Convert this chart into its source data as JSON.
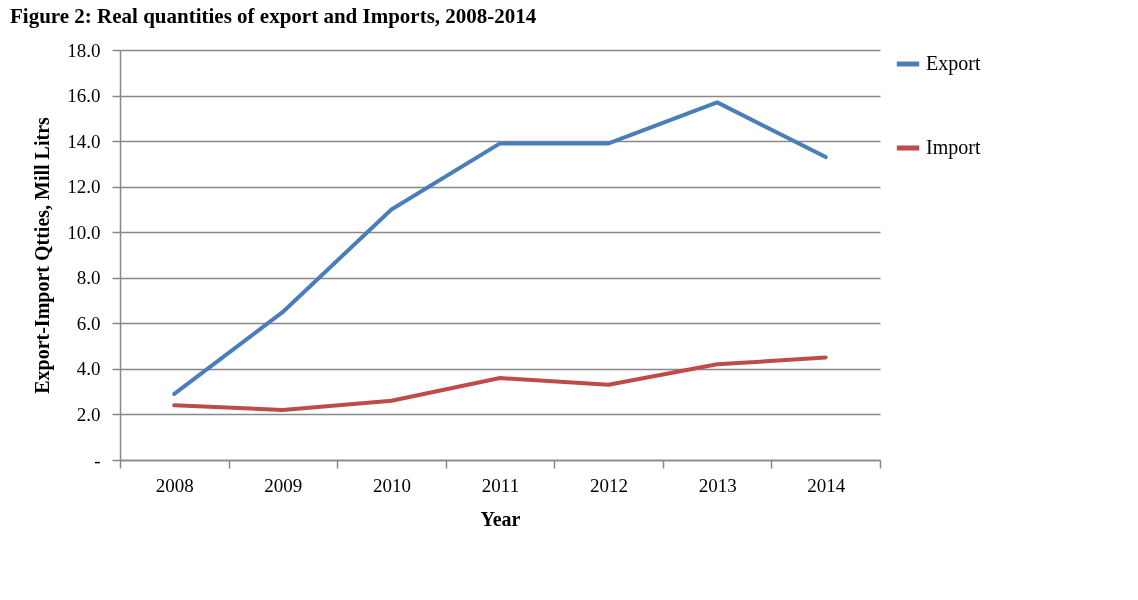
{
  "chart_data": {
    "type": "line",
    "title": "Figure 2: Real quantities of export and Imports, 2008-2014",
    "xlabel": "Year",
    "ylabel": "Export-Import Qtties, Mill Litrs",
    "categories": [
      "2008",
      "2009",
      "2010",
      "2011",
      "2012",
      "2013",
      "2014"
    ],
    "series": [
      {
        "name": "Export",
        "color": "#4a7ebb",
        "values": [
          2.9,
          6.5,
          11.0,
          13.9,
          13.9,
          15.7,
          13.3
        ]
      },
      {
        "name": "Import",
        "color": "#be4b48",
        "values": [
          2.4,
          2.2,
          2.6,
          3.6,
          3.3,
          4.2,
          4.5
        ]
      }
    ],
    "ylim": [
      0,
      18
    ],
    "yticks": [
      {
        "value": 0,
        "label": "-"
      },
      {
        "value": 2,
        "label": "2.0"
      },
      {
        "value": 4,
        "label": "4.0"
      },
      {
        "value": 6,
        "label": "6.0"
      },
      {
        "value": 8,
        "label": "8.0"
      },
      {
        "value": 10,
        "label": "10.0"
      },
      {
        "value": 12,
        "label": "12.0"
      },
      {
        "value": 14,
        "label": "14.0"
      },
      {
        "value": 16,
        "label": "16.0"
      },
      {
        "value": 18,
        "label": "18.0"
      }
    ],
    "grid": "y",
    "legend": "right",
    "line_style": "solid",
    "marker": "none"
  }
}
